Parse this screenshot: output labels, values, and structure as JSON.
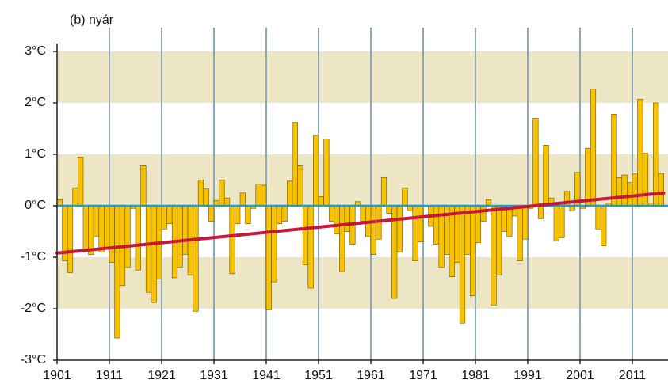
{
  "chart_data": {
    "type": "bar",
    "title": "(b) nyár",
    "x": [
      1901,
      1902,
      1903,
      1904,
      1905,
      1906,
      1907,
      1908,
      1909,
      1910,
      1911,
      1912,
      1913,
      1914,
      1915,
      1916,
      1917,
      1918,
      1919,
      1920,
      1921,
      1922,
      1923,
      1924,
      1925,
      1926,
      1927,
      1928,
      1929,
      1930,
      1931,
      1932,
      1933,
      1934,
      1935,
      1936,
      1937,
      1938,
      1939,
      1940,
      1941,
      1942,
      1943,
      1944,
      1945,
      1946,
      1947,
      1948,
      1949,
      1950,
      1951,
      1952,
      1953,
      1954,
      1955,
      1956,
      1957,
      1958,
      1959,
      1960,
      1961,
      1962,
      1963,
      1964,
      1965,
      1966,
      1967,
      1968,
      1969,
      1970,
      1971,
      1972,
      1973,
      1974,
      1975,
      1976,
      1977,
      1978,
      1979,
      1980,
      1981,
      1982,
      1983,
      1984,
      1985,
      1986,
      1987,
      1988,
      1989,
      1990,
      1991,
      1992,
      1993,
      1994,
      1995,
      1996,
      1997,
      1998,
      1999,
      2000,
      2001,
      2002,
      2003,
      2004,
      2005,
      2006,
      2007,
      2008,
      2009,
      2010,
      2011,
      2012,
      2013,
      2014,
      2015,
      2016
    ],
    "values": [
      0.12,
      -1.07,
      -1.3,
      0.35,
      0.95,
      -0.9,
      -0.95,
      -0.6,
      -0.9,
      -0.85,
      -1.1,
      -2.57,
      -1.55,
      -1.2,
      -0.05,
      -1.25,
      0.78,
      -1.68,
      -1.88,
      -1.42,
      -0.45,
      -0.35,
      -1.4,
      -1.2,
      -0.95,
      -1.35,
      -2.05,
      0.5,
      0.33,
      -0.3,
      0.1,
      0.5,
      0.15,
      -1.32,
      -0.35,
      0.25,
      -0.35,
      -0.05,
      0.42,
      0.4,
      -2.02,
      -1.48,
      -0.35,
      -0.3,
      0.48,
      1.62,
      0.78,
      -1.15,
      -1.6,
      1.37,
      0.18,
      1.3,
      -0.3,
      -0.55,
      -1.28,
      -0.5,
      -0.75,
      0.08,
      -0.3,
      -0.6,
      -0.95,
      -0.65,
      0.55,
      -0.15,
      -1.8,
      -0.9,
      0.35,
      -0.1,
      -1.07,
      -0.7,
      0.0,
      -0.4,
      -0.75,
      -1.2,
      -0.95,
      -1.38,
      -1.1,
      -2.28,
      -0.95,
      -1.75,
      -0.72,
      -0.3,
      0.12,
      -1.93,
      -1.35,
      -0.5,
      -0.6,
      -0.2,
      -1.07,
      -0.65,
      -0.05,
      1.7,
      -0.25,
      1.18,
      0.15,
      -0.68,
      -0.62,
      0.28,
      -0.1,
      0.65,
      -0.05,
      1.12,
      2.27,
      -0.45,
      -0.78,
      0.05,
      1.78,
      0.55,
      0.6,
      0.45,
      0.62,
      2.07,
      1.02,
      0.05,
      2.0,
      0.63
    ],
    "color": "#f7c200",
    "trend": {
      "x": [
        1901,
        2017
      ],
      "values": [
        -0.92,
        0.25
      ],
      "color": "#c8173c"
    },
    "xlim": [
      1901,
      2017
    ],
    "xticks": [
      1901,
      1911,
      1921,
      1931,
      1941,
      1951,
      1961,
      1971,
      1981,
      1991,
      2001,
      2011
    ],
    "ylim": [
      -3,
      3
    ],
    "yticks": [
      {
        "value": -3,
        "label": "-3°C"
      },
      {
        "value": -2,
        "label": "-2°C"
      },
      {
        "value": -1,
        "label": "-1°C"
      },
      {
        "value": 0,
        "label": "0°C"
      },
      {
        "value": 1,
        "label": "1°C"
      },
      {
        "value": 2,
        "label": "2°C"
      },
      {
        "value": 3,
        "label": "3°C"
      }
    ],
    "grid": true
  }
}
